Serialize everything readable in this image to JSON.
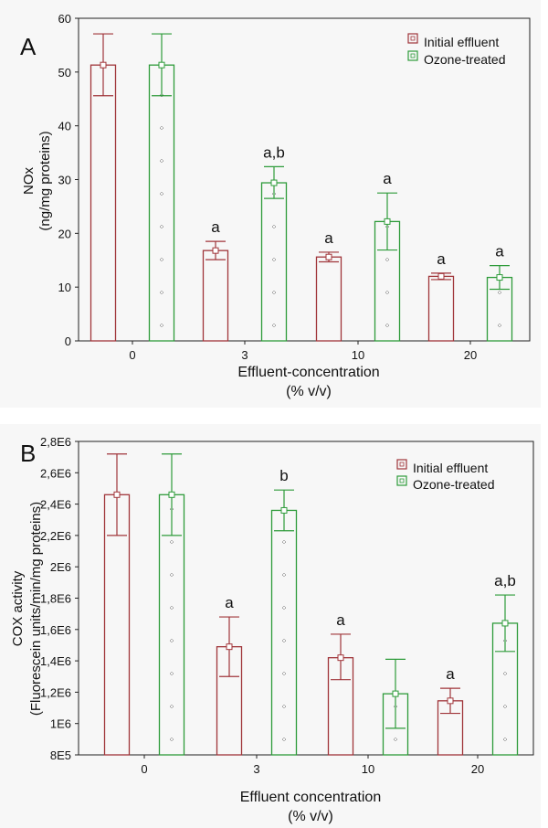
{
  "colors": {
    "initial": "#a0353a",
    "ozone": "#2e9b3a",
    "axis": "#222222"
  },
  "panels": [
    {
      "panel_label": "A",
      "legend": {
        "initial": "Initial effluent",
        "ozone": "Ozone-treated"
      },
      "xlabel_line1": "Effluent-concentration",
      "xlabel_line2": "(% v/v)",
      "ylabel_line1": "NOx",
      "ylabel_line2": "(ng/mg proteins)"
    },
    {
      "panel_label": "B",
      "legend": {
        "initial": "Initial effluent",
        "ozone": "Ozone-treated"
      },
      "xlabel_line1": "Effluent concentration",
      "xlabel_line2": "(% v/v)",
      "ylabel_line1": "COX activity",
      "ylabel_line2": "(Fluorescein units/min/mg proteins)"
    }
  ],
  "chart_data": [
    {
      "type": "bar",
      "title": "",
      "xlabel": "Effluent-concentration (% v/v)",
      "ylabel": "NOx (ng/mg proteins)",
      "categories": [
        "0",
        "3",
        "10",
        "20"
      ],
      "ylim": [
        0,
        60
      ],
      "yticks": [
        0,
        10,
        20,
        30,
        40,
        50,
        60
      ],
      "ytick_labels": [
        "0",
        "10",
        "20",
        "30",
        "40",
        "50",
        "60"
      ],
      "legend_position": "top-right",
      "series": [
        {
          "name": "Initial effluent",
          "values": [
            51.3,
            16.8,
            15.6,
            12.0
          ],
          "err_low": [
            45.6,
            15.1,
            14.7,
            11.4
          ],
          "err_high": [
            57.1,
            18.5,
            16.5,
            12.6
          ],
          "annotations": [
            "",
            "a",
            "a",
            "a"
          ]
        },
        {
          "name": "Ozone-treated",
          "values": [
            51.3,
            29.4,
            22.2,
            11.8
          ],
          "err_low": [
            45.6,
            26.5,
            16.9,
            9.6
          ],
          "err_high": [
            57.1,
            32.4,
            27.5,
            14.0
          ],
          "annotations": [
            "",
            "a,b",
            "a",
            "a"
          ]
        }
      ]
    },
    {
      "type": "bar",
      "title": "",
      "xlabel": "Effluent concentration (% v/v)",
      "ylabel": "COX activity (Fluorescein units/min/mg proteins)",
      "categories": [
        "0",
        "3",
        "10",
        "20"
      ],
      "ylim": [
        800000,
        2800000
      ],
      "yticks": [
        800000,
        1000000,
        1200000,
        1400000,
        1600000,
        1800000,
        2000000,
        2200000,
        2400000,
        2600000,
        2800000
      ],
      "ytick_labels": [
        "8E5",
        "1E6",
        "1,2E6",
        "1,4E6",
        "1,6E6",
        "1,8E6",
        "2E6",
        "2,2E6",
        "2,4E6",
        "2,6E6",
        "2,8E6"
      ],
      "legend_position": "top-right",
      "series": [
        {
          "name": "Initial effluent",
          "values": [
            2460000,
            1490000,
            1420000,
            1145000
          ],
          "err_low": [
            2200000,
            1300000,
            1280000,
            1065000
          ],
          "err_high": [
            2720000,
            1680000,
            1570000,
            1225000
          ],
          "annotations": [
            "",
            "a",
            "a",
            "a"
          ]
        },
        {
          "name": "Ozone-treated",
          "values": [
            2460000,
            2360000,
            1190000,
            1640000
          ],
          "err_low": [
            2200000,
            2230000,
            970000,
            1460000
          ],
          "err_high": [
            2720000,
            2490000,
            1410000,
            1820000
          ],
          "annotations": [
            "",
            "b",
            "",
            "a,b"
          ]
        }
      ]
    }
  ]
}
